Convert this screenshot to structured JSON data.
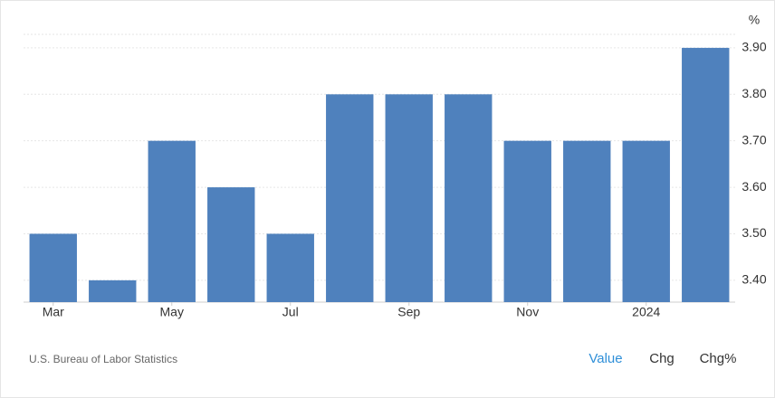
{
  "chart_data": {
    "type": "bar",
    "unit": "%",
    "categories": [
      "Mar",
      null,
      "May",
      null,
      "Jul",
      null,
      "Sep",
      null,
      "Nov",
      null,
      "2024",
      null
    ],
    "values": [
      3.5,
      3.4,
      3.7,
      3.6,
      3.5,
      3.8,
      3.8,
      3.8,
      3.7,
      3.7,
      3.7,
      3.9
    ],
    "color": "#4f81bd",
    "ylim": [
      3.353,
      3.929
    ],
    "yticks": [
      {
        "value": 3.4,
        "label": "3.40"
      },
      {
        "value": 3.5,
        "label": "3.50"
      },
      {
        "value": 3.6,
        "label": "3.60"
      },
      {
        "value": 3.7,
        "label": "3.70"
      },
      {
        "value": 3.8,
        "label": "3.80"
      },
      {
        "value": 3.9,
        "label": "3.90"
      }
    ],
    "grid": true,
    "source": "U.S. Bureau of Labor Statistics",
    "buttons": [
      "Value",
      "Chg",
      "Chg%"
    ],
    "active_button": 0
  }
}
